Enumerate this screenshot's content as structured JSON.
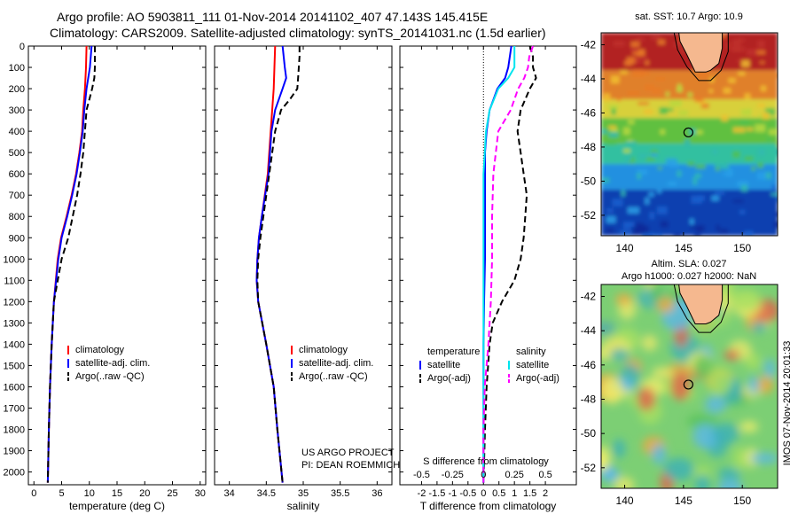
{
  "header": {
    "line1": "Argo profile: AO 5903811_111 01-Nov-2014 20141102_407 47.143S 145.415E",
    "line2": "Climatology: CARS2009. Satellite-adjusted climatology: synTS_20141031.nc (1.5d earlier)"
  },
  "colors": {
    "climatology": "#ff0000",
    "satellite": "#0000ff",
    "argo": "#000000",
    "salinity_satellite": "#00e5ee",
    "salinity_argo": "#ff00ff",
    "land": "#f5b88f"
  },
  "chart_data": [
    {
      "type": "line",
      "id": "temperature",
      "xlabel": "temperature (deg C)",
      "xlim": [
        -1,
        31
      ],
      "xticks": [
        "0",
        "5",
        "10",
        "15",
        "20",
        "25",
        "30"
      ],
      "ylim": [
        0,
        2060
      ],
      "yticks": [
        "0",
        "100",
        "200",
        "300",
        "400",
        "500",
        "600",
        "700",
        "800",
        "900",
        "1000",
        "1100",
        "1200",
        "1300",
        "1400",
        "1500",
        "1600",
        "1700",
        "1800",
        "1900",
        "2000"
      ],
      "legend": [
        "climatology",
        "satellite-adj. clim.",
        "Argo(..raw -QC)"
      ],
      "series": [
        {
          "name": "climatology",
          "depth": [
            0,
            100,
            200,
            300,
            400,
            500,
            600,
            700,
            800,
            900,
            1000,
            1200,
            1400,
            1600,
            1800,
            2050
          ],
          "values": [
            9.5,
            9.4,
            9.2,
            8.9,
            8.7,
            8.2,
            7.6,
            6.8,
            5.9,
            4.9,
            4.3,
            3.6,
            3.2,
            2.9,
            2.7,
            2.5
          ]
        },
        {
          "name": "satellite-adj. clim.",
          "depth": [
            0,
            100,
            200,
            300,
            400,
            500,
            600,
            700,
            800,
            900,
            1000,
            1200,
            1400,
            1600,
            1800,
            2050
          ],
          "values": [
            10.4,
            10.1,
            9.5,
            9.1,
            8.8,
            8.3,
            7.7,
            6.9,
            6.0,
            5.0,
            4.4,
            3.6,
            3.2,
            2.9,
            2.7,
            2.5
          ]
        },
        {
          "name": "Argo(..raw -QC)",
          "depth": [
            0,
            50,
            100,
            150,
            200,
            250,
            300,
            400,
            500,
            600,
            700,
            800,
            900,
            1000,
            1200,
            1400,
            1600,
            1800,
            2050
          ],
          "values": [
            11.0,
            11.0,
            11.0,
            10.9,
            10.5,
            10.0,
            9.5,
            9.2,
            8.9,
            8.4,
            7.8,
            7.0,
            6.2,
            5.0,
            3.6,
            3.2,
            2.9,
            2.7,
            2.5
          ]
        }
      ]
    },
    {
      "type": "line",
      "id": "salinity",
      "xlabel": "salinity",
      "xlim": [
        33.8,
        36.2
      ],
      "xticks": [
        "34",
        "34.5",
        "35",
        "35.5",
        "36"
      ],
      "ylim": [
        0,
        2060
      ],
      "legend": [
        "climatology",
        "satellite-adj. clim.",
        "Argo(..raw -QC)"
      ],
      "annotation": [
        "US ARGO PROJECT",
        "PI: DEAN ROEMMICH"
      ],
      "series": [
        {
          "name": "climatology",
          "depth": [
            0,
            100,
            200,
            300,
            400,
            600,
            800,
            900,
            1000,
            1100,
            1200,
            1400,
            1600,
            1800,
            2050
          ],
          "values": [
            34.62,
            34.61,
            34.6,
            34.58,
            34.56,
            34.52,
            34.44,
            34.4,
            34.38,
            34.37,
            34.39,
            34.5,
            34.6,
            34.65,
            34.72
          ]
        },
        {
          "name": "satellite-adj. clim.",
          "depth": [
            0,
            100,
            150,
            200,
            300,
            400,
            600,
            800,
            900,
            1000,
            1100,
            1200,
            1400,
            1600,
            1800,
            2050
          ],
          "values": [
            34.72,
            34.75,
            34.77,
            34.72,
            34.62,
            34.57,
            34.53,
            34.44,
            34.4,
            34.38,
            34.37,
            34.39,
            34.5,
            34.6,
            34.65,
            34.72
          ]
        },
        {
          "name": "Argo(..raw -QC)",
          "depth": [
            0,
            50,
            100,
            150,
            200,
            250,
            300,
            400,
            600,
            800,
            900,
            1000,
            1100,
            1200,
            1400,
            1600,
            1800,
            2050
          ],
          "values": [
            34.95,
            34.95,
            34.94,
            34.93,
            34.92,
            34.82,
            34.7,
            34.62,
            34.54,
            34.46,
            34.42,
            34.39,
            34.38,
            34.39,
            34.5,
            34.6,
            34.65,
            34.72
          ]
        }
      ]
    },
    {
      "type": "line",
      "id": "difference",
      "xlabel": "T difference from climatology",
      "xlabel_top": "S difference from climatology",
      "xlim": [
        -2.7,
        3.0
      ],
      "xticks": [
        "-2",
        "-1.5",
        "-1",
        "-0.5",
        "0",
        "0.5",
        "1",
        "1.5",
        "2"
      ],
      "xticks_top": [
        "-0.5",
        "-0.25",
        "0",
        "0.25",
        "0.5"
      ],
      "ylim": [
        0,
        2060
      ],
      "legend_headers": [
        "temperature",
        "salinity"
      ],
      "legend": [
        "satellite",
        "Argo(-adj)",
        "satellite",
        "Argo(-adj)"
      ],
      "series": [
        {
          "name": "temperature satellite",
          "depth": [
            0,
            100,
            150,
            200,
            300,
            400,
            500,
            600,
            700,
            800,
            900,
            1000,
            1200,
            1400,
            1600,
            1800,
            2050
          ],
          "values": [
            0.9,
            0.8,
            0.7,
            0.45,
            0.2,
            0.1,
            0.05,
            0.05,
            0.05,
            0.05,
            0.05,
            0.05,
            0.02,
            0.0,
            0.0,
            0.0,
            0.0
          ]
        },
        {
          "name": "temperature Argo(-adj)",
          "depth": [
            0,
            50,
            100,
            150,
            200,
            300,
            400,
            500,
            600,
            700,
            800,
            900,
            1000,
            1100,
            1200,
            1300,
            1400,
            1500,
            1600,
            1800,
            2050
          ],
          "values": [
            1.5,
            1.6,
            1.6,
            1.7,
            1.5,
            1.2,
            1.1,
            1.2,
            1.3,
            1.4,
            1.35,
            1.3,
            1.2,
            1.0,
            0.6,
            0.3,
            0.2,
            0.15,
            0.1,
            0.05,
            0.0
          ]
        },
        {
          "name": "salinity satellite",
          "depth": [
            0,
            100,
            150,
            200,
            300,
            400,
            600,
            800,
            1000,
            1200,
            1400,
            1600,
            1800,
            2050
          ],
          "values": [
            0.25,
            0.25,
            0.2,
            0.12,
            0.05,
            0.02,
            0.0,
            0.0,
            0.0,
            0.0,
            0.0,
            0.0,
            0.0,
            0.0
          ]
        },
        {
          "name": "salinity Argo(-adj)",
          "depth": [
            0,
            50,
            100,
            150,
            200,
            300,
            400,
            500,
            600,
            800,
            1000,
            1200,
            1400,
            1600,
            1800,
            2050
          ],
          "values": [
            0.4,
            0.37,
            0.36,
            0.33,
            0.28,
            0.22,
            0.12,
            0.1,
            0.08,
            0.07,
            0.07,
            0.06,
            0.04,
            0.01,
            0.0,
            0.0
          ]
        }
      ]
    },
    {
      "type": "heatmap",
      "id": "sst_map",
      "title": "sat. SST: 10.7  Argo: 10.9",
      "xticks": [
        "140",
        "145",
        "150"
      ],
      "yticks": [
        "-42",
        "-44",
        "-46",
        "-48",
        "-50",
        "-52"
      ],
      "xlim": [
        138,
        153
      ],
      "ylim": [
        -53.2,
        -41.3
      ],
      "marker": {
        "lon": 145.415,
        "lat": -47.143
      }
    },
    {
      "type": "heatmap",
      "id": "sla_map",
      "title": "Altim. SLA: 0.027",
      "subtitle": "Argo h1000: 0.027  h2000: NaN",
      "xticks": [
        "140",
        "145",
        "150"
      ],
      "yticks": [
        "-42",
        "-44",
        "-46",
        "-48",
        "-50",
        "-52"
      ],
      "xlim": [
        138,
        153
      ],
      "ylim": [
        -53.2,
        -41.3
      ],
      "marker": {
        "lon": 145.415,
        "lat": -47.143
      },
      "side_label": "IMOS 07-Nov-2014 20:01:33"
    }
  ]
}
